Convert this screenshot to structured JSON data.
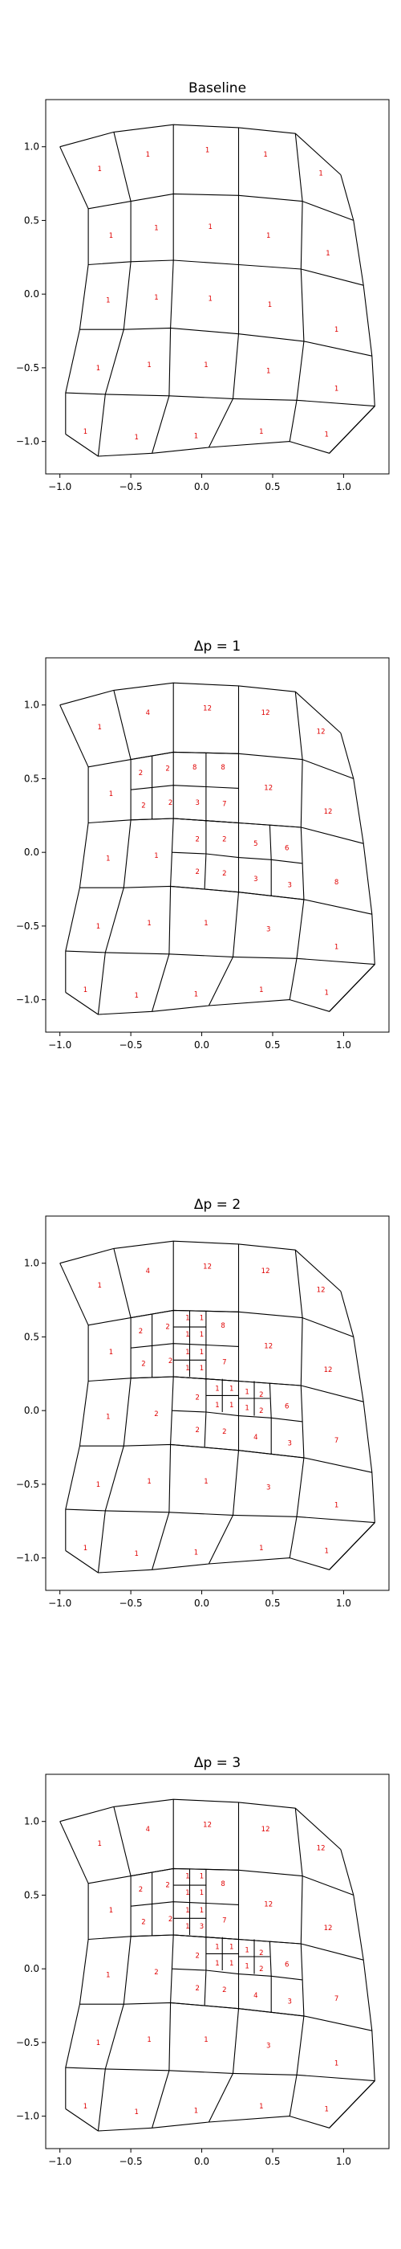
{
  "chart_data": [
    {
      "type": "mesh",
      "title": "Baseline",
      "xlim": [
        -1.1,
        1.32
      ],
      "ylim": [
        -1.22,
        1.32
      ],
      "xticks": [
        -1.0,
        -0.5,
        0.0,
        0.5,
        1.0
      ],
      "xtick_labels": [
        "−1.0",
        "−0.5",
        "0.0",
        "0.5",
        "1.0"
      ],
      "yticks": [
        -1.0,
        -0.5,
        0.0,
        0.5,
        1.0
      ],
      "ytick_labels": [
        "−1.0",
        "−0.5",
        "0.0",
        "0.5",
        "1.0"
      ],
      "cell_labels": [
        {
          "x": -0.72,
          "y": 0.85,
          "text": "1"
        },
        {
          "x": -0.38,
          "y": 0.95,
          "text": "1"
        },
        {
          "x": 0.04,
          "y": 0.98,
          "text": "1"
        },
        {
          "x": 0.45,
          "y": 0.95,
          "text": "1"
        },
        {
          "x": 0.84,
          "y": 0.82,
          "text": "1"
        },
        {
          "x": -0.64,
          "y": 0.4,
          "text": "1"
        },
        {
          "x": -0.32,
          "y": 0.45,
          "text": "1"
        },
        {
          "x": 0.06,
          "y": 0.46,
          "text": "1"
        },
        {
          "x": 0.47,
          "y": 0.4,
          "text": "1"
        },
        {
          "x": 0.89,
          "y": 0.28,
          "text": "1"
        },
        {
          "x": -0.66,
          "y": -0.04,
          "text": "1"
        },
        {
          "x": -0.32,
          "y": -0.02,
          "text": "1"
        },
        {
          "x": 0.06,
          "y": -0.03,
          "text": "1"
        },
        {
          "x": 0.48,
          "y": -0.07,
          "text": "1"
        },
        {
          "x": 0.95,
          "y": -0.24,
          "text": "1"
        },
        {
          "x": -0.73,
          "y": -0.5,
          "text": "1"
        },
        {
          "x": -0.37,
          "y": -0.48,
          "text": "1"
        },
        {
          "x": 0.03,
          "y": -0.48,
          "text": "1"
        },
        {
          "x": 0.47,
          "y": -0.52,
          "text": "1"
        },
        {
          "x": 0.95,
          "y": -0.64,
          "text": "1"
        },
        {
          "x": -0.82,
          "y": -0.93,
          "text": "1"
        },
        {
          "x": -0.46,
          "y": -0.97,
          "text": "1"
        },
        {
          "x": -0.04,
          "y": -0.96,
          "text": "1"
        },
        {
          "x": 0.42,
          "y": -0.93,
          "text": "1"
        },
        {
          "x": 0.88,
          "y": -0.95,
          "text": "1"
        }
      ]
    },
    {
      "type": "mesh",
      "title": "Δp = 1",
      "xlim": [
        -1.1,
        1.32
      ],
      "ylim": [
        -1.22,
        1.32
      ],
      "xticks": [
        -1.0,
        -0.5,
        0.0,
        0.5,
        1.0
      ],
      "xtick_labels": [
        "−1.0",
        "−0.5",
        "0.0",
        "0.5",
        "1.0"
      ],
      "yticks": [
        -1.0,
        -0.5,
        0.0,
        0.5,
        1.0
      ],
      "ytick_labels": [
        "−1.0",
        "−0.5",
        "0.0",
        "0.5",
        "1.0"
      ],
      "cell_labels": [
        {
          "x": -0.72,
          "y": 0.85,
          "text": "1"
        },
        {
          "x": -0.38,
          "y": 0.95,
          "text": "4"
        },
        {
          "x": 0.04,
          "y": 0.98,
          "text": "12"
        },
        {
          "x": 0.45,
          "y": 0.95,
          "text": "12"
        },
        {
          "x": 0.84,
          "y": 0.82,
          "text": "12"
        },
        {
          "x": -0.64,
          "y": 0.4,
          "text": "1"
        },
        {
          "x": -0.43,
          "y": 0.54,
          "text": "2"
        },
        {
          "x": -0.24,
          "y": 0.57,
          "text": "2"
        },
        {
          "x": -0.05,
          "y": 0.58,
          "text": "8"
        },
        {
          "x": 0.15,
          "y": 0.58,
          "text": "8"
        },
        {
          "x": -0.41,
          "y": 0.32,
          "text": "2"
        },
        {
          "x": -0.22,
          "y": 0.34,
          "text": "2"
        },
        {
          "x": -0.03,
          "y": 0.34,
          "text": "3"
        },
        {
          "x": 0.16,
          "y": 0.33,
          "text": "7"
        },
        {
          "x": 0.47,
          "y": 0.44,
          "text": "12"
        },
        {
          "x": 0.89,
          "y": 0.28,
          "text": "12"
        },
        {
          "x": -0.66,
          "y": -0.04,
          "text": "1"
        },
        {
          "x": -0.32,
          "y": -0.02,
          "text": "1"
        },
        {
          "x": -0.03,
          "y": 0.09,
          "text": "2"
        },
        {
          "x": 0.16,
          "y": 0.09,
          "text": "2"
        },
        {
          "x": 0.38,
          "y": 0.06,
          "text": "5"
        },
        {
          "x": 0.6,
          "y": 0.03,
          "text": "6"
        },
        {
          "x": -0.03,
          "y": -0.13,
          "text": "2"
        },
        {
          "x": 0.16,
          "y": -0.14,
          "text": "2"
        },
        {
          "x": 0.38,
          "y": -0.18,
          "text": "3"
        },
        {
          "x": 0.62,
          "y": -0.22,
          "text": "3"
        },
        {
          "x": 0.95,
          "y": -0.2,
          "text": "8"
        },
        {
          "x": -0.73,
          "y": -0.5,
          "text": "1"
        },
        {
          "x": -0.37,
          "y": -0.48,
          "text": "1"
        },
        {
          "x": 0.03,
          "y": -0.48,
          "text": "1"
        },
        {
          "x": 0.47,
          "y": -0.52,
          "text": "3"
        },
        {
          "x": 0.95,
          "y": -0.64,
          "text": "1"
        },
        {
          "x": -0.82,
          "y": -0.93,
          "text": "1"
        },
        {
          "x": -0.46,
          "y": -0.97,
          "text": "1"
        },
        {
          "x": -0.04,
          "y": -0.96,
          "text": "1"
        },
        {
          "x": 0.42,
          "y": -0.93,
          "text": "1"
        },
        {
          "x": 0.88,
          "y": -0.95,
          "text": "1"
        }
      ]
    },
    {
      "type": "mesh",
      "title": "Δp = 2",
      "xlim": [
        -1.1,
        1.32
      ],
      "ylim": [
        -1.22,
        1.32
      ],
      "xticks": [
        -1.0,
        -0.5,
        0.0,
        0.5,
        1.0
      ],
      "xtick_labels": [
        "−1.0",
        "−0.5",
        "0.0",
        "0.5",
        "1.0"
      ],
      "yticks": [
        -1.0,
        -0.5,
        0.0,
        0.5,
        1.0
      ],
      "ytick_labels": [
        "−1.0",
        "−0.5",
        "0.0",
        "0.5",
        "1.0"
      ],
      "cell_labels": [
        {
          "x": -0.72,
          "y": 0.85,
          "text": "1"
        },
        {
          "x": -0.38,
          "y": 0.95,
          "text": "4"
        },
        {
          "x": 0.04,
          "y": 0.98,
          "text": "12"
        },
        {
          "x": 0.45,
          "y": 0.95,
          "text": "12"
        },
        {
          "x": 0.84,
          "y": 0.82,
          "text": "12"
        },
        {
          "x": -0.64,
          "y": 0.4,
          "text": "1"
        },
        {
          "x": -0.43,
          "y": 0.54,
          "text": "2"
        },
        {
          "x": -0.24,
          "y": 0.57,
          "text": "2"
        },
        {
          "x": -0.1,
          "y": 0.63,
          "text": "1"
        },
        {
          "x": 0.0,
          "y": 0.63,
          "text": "1"
        },
        {
          "x": -0.1,
          "y": 0.52,
          "text": "1"
        },
        {
          "x": 0.0,
          "y": 0.52,
          "text": "1"
        },
        {
          "x": 0.15,
          "y": 0.58,
          "text": "8"
        },
        {
          "x": -0.41,
          "y": 0.32,
          "text": "2"
        },
        {
          "x": -0.22,
          "y": 0.34,
          "text": "2"
        },
        {
          "x": -0.1,
          "y": 0.4,
          "text": "1"
        },
        {
          "x": 0.0,
          "y": 0.4,
          "text": "1"
        },
        {
          "x": -0.1,
          "y": 0.29,
          "text": "1"
        },
        {
          "x": 0.0,
          "y": 0.29,
          "text": "1"
        },
        {
          "x": 0.16,
          "y": 0.33,
          "text": "7"
        },
        {
          "x": 0.47,
          "y": 0.44,
          "text": "12"
        },
        {
          "x": 0.89,
          "y": 0.28,
          "text": "12"
        },
        {
          "x": -0.66,
          "y": -0.04,
          "text": "1"
        },
        {
          "x": -0.32,
          "y": -0.02,
          "text": "2"
        },
        {
          "x": -0.03,
          "y": 0.09,
          "text": "2"
        },
        {
          "x": 0.11,
          "y": 0.15,
          "text": "1"
        },
        {
          "x": 0.21,
          "y": 0.15,
          "text": "1"
        },
        {
          "x": 0.11,
          "y": 0.04,
          "text": "1"
        },
        {
          "x": 0.21,
          "y": 0.04,
          "text": "1"
        },
        {
          "x": 0.32,
          "y": 0.13,
          "text": "1"
        },
        {
          "x": 0.42,
          "y": 0.11,
          "text": "2"
        },
        {
          "x": 0.32,
          "y": 0.02,
          "text": "1"
        },
        {
          "x": 0.42,
          "y": 0.0,
          "text": "2"
        },
        {
          "x": 0.6,
          "y": 0.03,
          "text": "6"
        },
        {
          "x": -0.03,
          "y": -0.13,
          "text": "2"
        },
        {
          "x": 0.16,
          "y": -0.14,
          "text": "2"
        },
        {
          "x": 0.38,
          "y": -0.18,
          "text": "4"
        },
        {
          "x": 0.62,
          "y": -0.22,
          "text": "3"
        },
        {
          "x": 0.95,
          "y": -0.2,
          "text": "7"
        },
        {
          "x": -0.73,
          "y": -0.5,
          "text": "1"
        },
        {
          "x": -0.37,
          "y": -0.48,
          "text": "1"
        },
        {
          "x": 0.03,
          "y": -0.48,
          "text": "1"
        },
        {
          "x": 0.47,
          "y": -0.52,
          "text": "3"
        },
        {
          "x": 0.95,
          "y": -0.64,
          "text": "1"
        },
        {
          "x": -0.82,
          "y": -0.93,
          "text": "1"
        },
        {
          "x": -0.46,
          "y": -0.97,
          "text": "1"
        },
        {
          "x": -0.04,
          "y": -0.96,
          "text": "1"
        },
        {
          "x": 0.42,
          "y": -0.93,
          "text": "1"
        },
        {
          "x": 0.88,
          "y": -0.95,
          "text": "1"
        }
      ]
    },
    {
      "type": "mesh",
      "title": "Δp = 3",
      "xlim": [
        -1.1,
        1.32
      ],
      "ylim": [
        -1.22,
        1.32
      ],
      "xticks": [
        -1.0,
        -0.5,
        0.0,
        0.5,
        1.0
      ],
      "xtick_labels": [
        "−1.0",
        "−0.5",
        "0.0",
        "0.5",
        "1.0"
      ],
      "yticks": [
        -1.0,
        -0.5,
        0.0,
        0.5,
        1.0
      ],
      "ytick_labels": [
        "−1.0",
        "−0.5",
        "0.0",
        "0.5",
        "1.0"
      ],
      "cell_labels": [
        {
          "x": -0.72,
          "y": 0.85,
          "text": "1"
        },
        {
          "x": -0.38,
          "y": 0.95,
          "text": "4"
        },
        {
          "x": 0.04,
          "y": 0.98,
          "text": "12"
        },
        {
          "x": 0.45,
          "y": 0.95,
          "text": "12"
        },
        {
          "x": 0.84,
          "y": 0.82,
          "text": "12"
        },
        {
          "x": -0.64,
          "y": 0.4,
          "text": "1"
        },
        {
          "x": -0.43,
          "y": 0.54,
          "text": "2"
        },
        {
          "x": -0.24,
          "y": 0.57,
          "text": "2"
        },
        {
          "x": -0.1,
          "y": 0.63,
          "text": "1"
        },
        {
          "x": 0.0,
          "y": 0.63,
          "text": "1"
        },
        {
          "x": -0.1,
          "y": 0.52,
          "text": "1"
        },
        {
          "x": 0.0,
          "y": 0.52,
          "text": "1"
        },
        {
          "x": 0.15,
          "y": 0.58,
          "text": "8"
        },
        {
          "x": -0.41,
          "y": 0.32,
          "text": "2"
        },
        {
          "x": -0.22,
          "y": 0.34,
          "text": "2"
        },
        {
          "x": -0.1,
          "y": 0.4,
          "text": "1"
        },
        {
          "x": 0.0,
          "y": 0.4,
          "text": "1"
        },
        {
          "x": -0.1,
          "y": 0.29,
          "text": "1"
        },
        {
          "x": 0.0,
          "y": 0.29,
          "text": "3"
        },
        {
          "x": 0.16,
          "y": 0.33,
          "text": "7"
        },
        {
          "x": 0.47,
          "y": 0.44,
          "text": "12"
        },
        {
          "x": 0.89,
          "y": 0.28,
          "text": "12"
        },
        {
          "x": -0.66,
          "y": -0.04,
          "text": "1"
        },
        {
          "x": -0.32,
          "y": -0.02,
          "text": "2"
        },
        {
          "x": -0.03,
          "y": 0.09,
          "text": "2"
        },
        {
          "x": 0.11,
          "y": 0.15,
          "text": "1"
        },
        {
          "x": 0.21,
          "y": 0.15,
          "text": "1"
        },
        {
          "x": 0.11,
          "y": 0.04,
          "text": "1"
        },
        {
          "x": 0.21,
          "y": 0.04,
          "text": "1"
        },
        {
          "x": 0.32,
          "y": 0.13,
          "text": "1"
        },
        {
          "x": 0.42,
          "y": 0.11,
          "text": "2"
        },
        {
          "x": 0.32,
          "y": 0.02,
          "text": "1"
        },
        {
          "x": 0.42,
          "y": 0.0,
          "text": "2"
        },
        {
          "x": 0.6,
          "y": 0.03,
          "text": "6"
        },
        {
          "x": -0.03,
          "y": -0.13,
          "text": "2"
        },
        {
          "x": 0.16,
          "y": -0.14,
          "text": "2"
        },
        {
          "x": 0.38,
          "y": -0.18,
          "text": "4"
        },
        {
          "x": 0.62,
          "y": -0.22,
          "text": "3"
        },
        {
          "x": 0.95,
          "y": -0.2,
          "text": "7"
        },
        {
          "x": -0.73,
          "y": -0.5,
          "text": "1"
        },
        {
          "x": -0.37,
          "y": -0.48,
          "text": "1"
        },
        {
          "x": 0.03,
          "y": -0.48,
          "text": "1"
        },
        {
          "x": 0.47,
          "y": -0.52,
          "text": "3"
        },
        {
          "x": 0.95,
          "y": -0.64,
          "text": "1"
        },
        {
          "x": -0.82,
          "y": -0.93,
          "text": "1"
        },
        {
          "x": -0.46,
          "y": -0.97,
          "text": "1"
        },
        {
          "x": -0.04,
          "y": -0.96,
          "text": "1"
        },
        {
          "x": 0.42,
          "y": -0.93,
          "text": "1"
        },
        {
          "x": 0.88,
          "y": -0.95,
          "text": "1"
        }
      ]
    }
  ]
}
